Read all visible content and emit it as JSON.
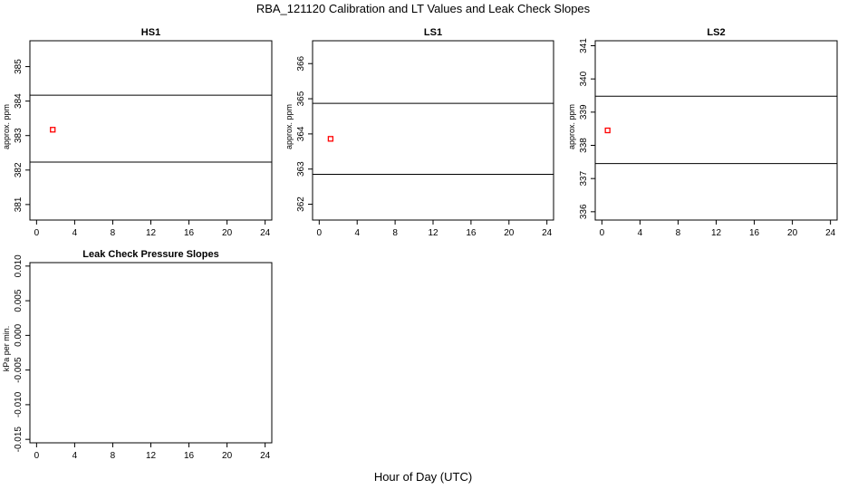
{
  "figure": {
    "title": "RBA_121120  Calibration and LT Values and Leak Check Slopes",
    "xlabel": "Hour of Day (UTC)"
  },
  "chart_data": [
    {
      "type": "scatter",
      "title": "HS1",
      "ylabel": "approx. ppm",
      "xlim": [
        -0.7,
        24.7
      ],
      "ylim": [
        380.55,
        385.75
      ],
      "xticks": [
        0,
        4,
        8,
        12,
        16,
        20,
        24
      ],
      "yticks": [
        381,
        382,
        383,
        384,
        385
      ],
      "hlines": [
        382.23,
        384.17
      ],
      "points": [
        {
          "x": 1.7,
          "y": 383.17
        }
      ],
      "marker_color": "#ff0000"
    },
    {
      "type": "scatter",
      "title": "LS1",
      "ylabel": "approx. ppm",
      "xlim": [
        -0.7,
        24.7
      ],
      "ylim": [
        361.55,
        366.65
      ],
      "xticks": [
        0,
        4,
        8,
        12,
        16,
        20,
        24
      ],
      "yticks": [
        362,
        363,
        364,
        365,
        366
      ],
      "hlines": [
        362.85,
        364.87
      ],
      "points": [
        {
          "x": 1.2,
          "y": 363.86
        }
      ],
      "marker_color": "#ff0000"
    },
    {
      "type": "scatter",
      "title": "LS2",
      "ylabel": "approx. ppm",
      "xlim": [
        -0.7,
        24.7
      ],
      "ylim": [
        335.75,
        341.15
      ],
      "xticks": [
        0,
        4,
        8,
        12,
        16,
        20,
        24
      ],
      "yticks": [
        336,
        337,
        338,
        339,
        340,
        341
      ],
      "hlines": [
        337.45,
        339.48
      ],
      "points": [
        {
          "x": 0.6,
          "y": 338.45
        }
      ],
      "marker_color": "#ff0000"
    },
    {
      "type": "scatter",
      "title": "Leak Check Pressure Slopes",
      "ylabel": "kPa per min.",
      "xlim": [
        -0.7,
        24.7
      ],
      "ylim": [
        -0.0155,
        0.0105
      ],
      "xticks": [
        0,
        4,
        8,
        12,
        16,
        20,
        24
      ],
      "yticks": [
        -0.015,
        -0.01,
        -0.005,
        0.0,
        0.005,
        0.01
      ],
      "ytick_labels": [
        "-0.015",
        "-0.010",
        "-0.005",
        "0.000",
        "0.005",
        "0.010"
      ],
      "hlines": [],
      "points": [],
      "marker_color": "#ff0000"
    }
  ]
}
